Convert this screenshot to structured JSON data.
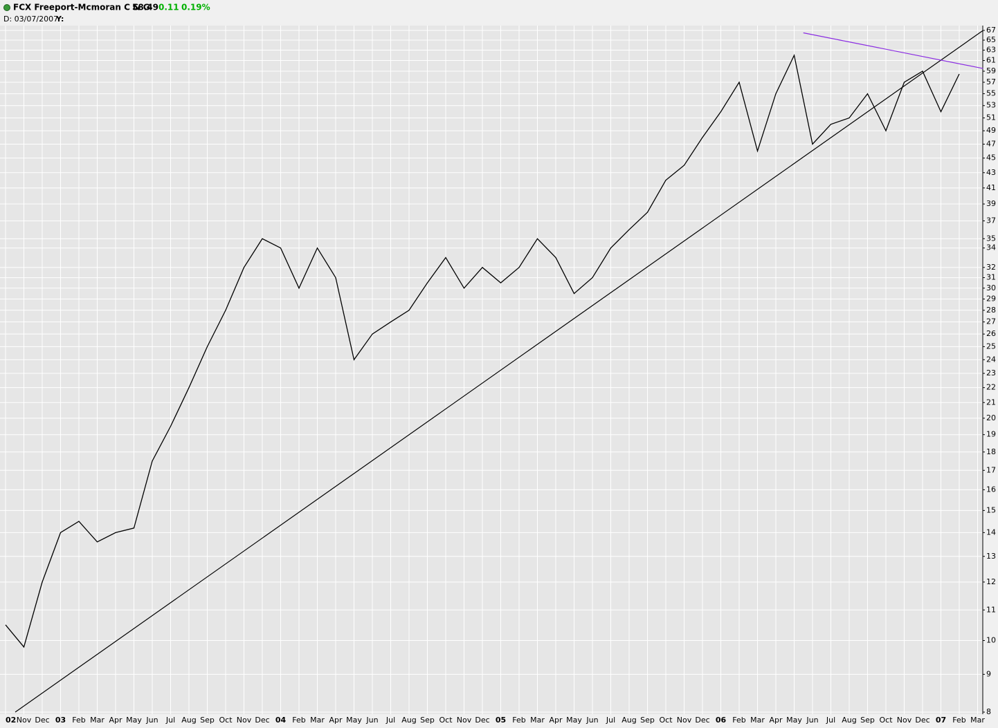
{
  "chart_data": {
    "type": "line",
    "header": {
      "symbol": "FCX Freeport-Mcmoran C & G",
      "last": "58.49",
      "change": "0.11",
      "change_pct": "0.19%",
      "date_label": "D: 03/07/2007",
      "y_label": "Y:"
    },
    "categories": [
      "02",
      "Nov",
      "Dec",
      "03",
      "Feb",
      "Mar",
      "Apr",
      "May",
      "Jun",
      "Jul",
      "Aug",
      "Sep",
      "Oct",
      "Nov",
      "Dec",
      "04",
      "Feb",
      "Mar",
      "Apr",
      "May",
      "Jun",
      "Jul",
      "Aug",
      "Sep",
      "Oct",
      "Nov",
      "Dec",
      "05",
      "Feb",
      "Mar",
      "Apr",
      "May",
      "Jun",
      "Jul",
      "Aug",
      "Sep",
      "Oct",
      "Nov",
      "Dec",
      "06",
      "Feb",
      "Mar",
      "Apr",
      "May",
      "Jun",
      "Jul",
      "Aug",
      "Sep",
      "Oct",
      "Nov",
      "Dec",
      "07",
      "Feb",
      "Mar"
    ],
    "series": [
      {
        "name": "FCX",
        "color": "#000000",
        "values": [
          10.5,
          9.8,
          12,
          14,
          14.5,
          13.6,
          14,
          14.2,
          17.5,
          19.5,
          22,
          25,
          28,
          32,
          35,
          34,
          30,
          34,
          31,
          24,
          26,
          27,
          28,
          30.5,
          33,
          30,
          32,
          30.5,
          32,
          35,
          33,
          29.5,
          31,
          34,
          36,
          38,
          42,
          44,
          48,
          52,
          57,
          46,
          55,
          62,
          47,
          50,
          51,
          55,
          49,
          57,
          59,
          52,
          58.49,
          null
        ]
      }
    ],
    "trendlines": [
      {
        "color": "#000000",
        "x": [
          0.53,
          53.3
        ],
        "values": [
          8,
          67
        ]
      },
      {
        "color": "#8a2be2",
        "x": [
          43.5,
          53.3
        ],
        "values": [
          66.5,
          59.5
        ]
      }
    ],
    "log_scale": true,
    "grid": true,
    "ylim": [
      8,
      67
    ],
    "yticks": [
      8,
      9,
      10,
      11,
      12,
      13,
      14,
      15,
      16,
      17,
      18,
      19,
      20,
      21,
      22,
      23,
      24,
      25,
      26,
      27,
      28,
      29,
      30,
      31,
      32,
      34,
      35,
      37,
      39,
      41,
      43,
      45,
      47,
      49,
      51,
      53,
      55,
      57,
      59,
      61,
      63,
      65,
      67
    ]
  }
}
